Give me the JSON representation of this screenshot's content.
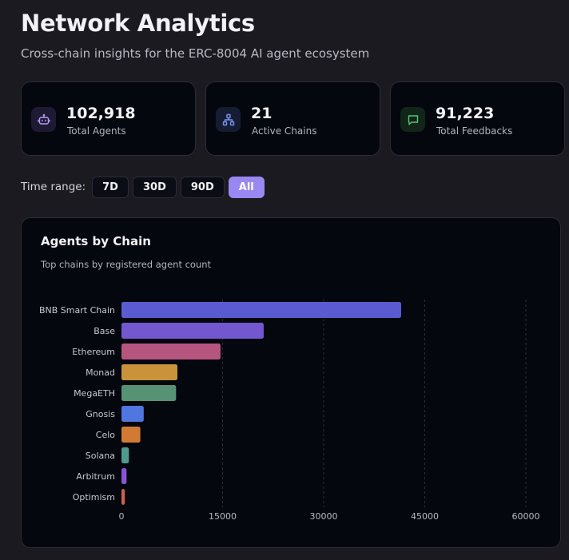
{
  "header": {
    "title": "Network Analytics",
    "subtitle": "Cross-chain insights for the ERC-8004 AI agent ecosystem"
  },
  "stats": [
    {
      "value": "102,918",
      "label": "Total Agents",
      "icon": "bot-icon",
      "color": "#b79cf5"
    },
    {
      "value": "21",
      "label": "Active Chains",
      "icon": "network-icon",
      "color": "#7b93f2"
    },
    {
      "value": "91,223",
      "label": "Total Feedbacks",
      "icon": "message-icon",
      "color": "#53c67a"
    }
  ],
  "time_range": {
    "label": "Time range:",
    "options": [
      "7D",
      "30D",
      "90D",
      "All"
    ],
    "selected": "All"
  },
  "chart_card": {
    "title": "Agents by Chain",
    "subtitle": "Top chains by registered agent count"
  },
  "chart_data": {
    "type": "bar",
    "orientation": "horizontal",
    "title": "Agents by Chain",
    "categories": [
      "BNB Smart Chain",
      "Base",
      "Ethereum",
      "Monad",
      "MegaETH",
      "Gnosis",
      "Celo",
      "Solana",
      "Arbitrum",
      "Optimism"
    ],
    "values": [
      41500,
      21100,
      14700,
      8300,
      8100,
      3300,
      2800,
      1100,
      750,
      500
    ],
    "colors": [
      "#5b5bd1",
      "#7257d1",
      "#b6567f",
      "#c9933a",
      "#569374",
      "#5076e0",
      "#d17a34",
      "#4f9a8f",
      "#8a54d4",
      "#c9624e"
    ],
    "xlim": [
      0,
      60000
    ],
    "xticks": [
      0,
      15000,
      30000,
      45000,
      60000
    ],
    "grid": "vertical-dashed"
  }
}
